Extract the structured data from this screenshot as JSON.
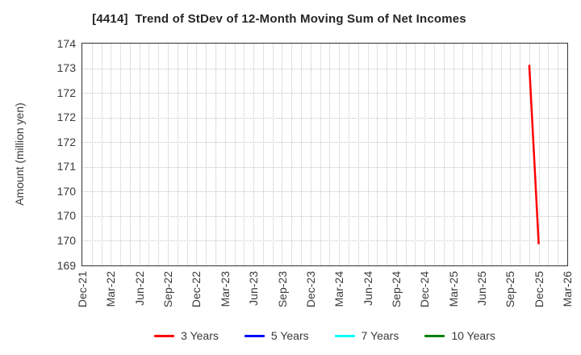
{
  "chart_data": {
    "type": "line",
    "title": "[4414]  Trend of StDev of 12-Month Moving Sum of Net Incomes",
    "ylabel": "Amount (million yen)",
    "ylim": [
      169.0,
      173.5
    ],
    "grid": true,
    "legend_position": "bottom",
    "x_axis": {
      "unit": "month",
      "start": "Dec-21",
      "end": "Mar-26",
      "months_total": 51,
      "tick_every_months": 3,
      "tick_labels": [
        "Dec-21",
        "Mar-22",
        "Jun-22",
        "Sep-22",
        "Dec-22",
        "Mar-23",
        "Jun-23",
        "Sep-23",
        "Dec-23",
        "Mar-24",
        "Jun-24",
        "Sep-24",
        "Dec-24",
        "Mar-25",
        "Jun-25",
        "Sep-25",
        "Dec-25",
        "Mar-26"
      ]
    },
    "y_axis": {
      "tick_values": [
        173.5,
        173.0,
        172.5,
        172.0,
        171.5,
        171.0,
        170.5,
        170.0,
        169.5,
        169.0
      ],
      "tick_labels": [
        "174",
        "173",
        "172",
        "172",
        "172",
        "171",
        "170",
        "170",
        "170",
        "169"
      ]
    },
    "series": [
      {
        "name": "3 Years",
        "color": "#ff0000",
        "points": [
          {
            "month": "Nov-25",
            "month_index": 47,
            "value": 173.07
          },
          {
            "month": "Dec-25",
            "month_index": 48,
            "value": 169.43
          }
        ]
      },
      {
        "name": "5 Years",
        "color": "#0000ff",
        "points": []
      },
      {
        "name": "7 Years",
        "color": "#00ffff",
        "points": []
      },
      {
        "name": "10 Years",
        "color": "#008000",
        "points": []
      }
    ]
  },
  "colors": {
    "grid": "#c4c4c4",
    "axis_border": "#333333",
    "tick_text": "#3a3a3a",
    "title_text": "#262626",
    "background": "#ffffff"
  }
}
